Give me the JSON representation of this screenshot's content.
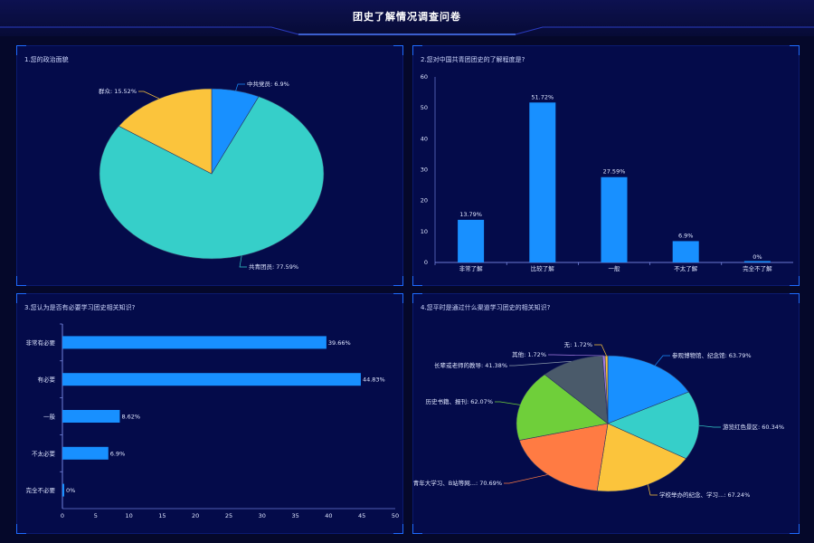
{
  "page_title": "团史了解情况调查问卷",
  "chart_data": [
    {
      "type": "pie",
      "title": "1.您的政治面貌",
      "slices": [
        {
          "label": "中共党员",
          "value": 6.9,
          "text": "中共党员: 6.9%",
          "color": "#1890ff"
        },
        {
          "label": "共青团员",
          "value": 77.59,
          "text": "共青团员: 77.59%",
          "color": "#36cfc9"
        },
        {
          "label": "群众",
          "value": 15.52,
          "text": "群众: 15.52%",
          "color": "#fbc43c"
        }
      ]
    },
    {
      "type": "bar",
      "title": "2.您对中国共青团团史的了解程度是?",
      "categories": [
        "非常了解",
        "比较了解",
        "一般",
        "不太了解",
        "完全不了解"
      ],
      "values": [
        13.79,
        51.72,
        27.59,
        6.9,
        0
      ],
      "labels": [
        "13.79%",
        "51.72%",
        "27.59%",
        "6.9%",
        "0%"
      ],
      "ylim": [
        0,
        60
      ],
      "yticks": [
        "0",
        "10",
        "20",
        "30",
        "40",
        "50",
        "60"
      ],
      "color": "#1890ff"
    },
    {
      "type": "bar",
      "orientation": "horizontal",
      "title": "3.您认为是否有必要学习团史相关知识?",
      "categories": [
        "非常有必要",
        "有必要",
        "一般",
        "不太必要",
        "完全不必要"
      ],
      "values": [
        39.66,
        44.83,
        8.62,
        6.9,
        0
      ],
      "labels": [
        "39.66%",
        "44.83%",
        "8.62%",
        "6.9%",
        "0%"
      ],
      "xlim": [
        0,
        50
      ],
      "xticks": [
        "0",
        "5",
        "10",
        "15",
        "20",
        "25",
        "30",
        "35",
        "40",
        "45",
        "50"
      ],
      "color": "#1890ff"
    },
    {
      "type": "pie",
      "title": "4.您平时是通过什么渠道学习团史的相关知识?",
      "slices": [
        {
          "label": "参观博物馆、纪念馆",
          "value": 63.79,
          "text": "参观博物馆、纪念馆: 63.79%",
          "color": "#1890ff"
        },
        {
          "label": "游览红色景区",
          "value": 60.34,
          "text": "游览红色景区: 60.34%",
          "color": "#36cfc9"
        },
        {
          "label": "学校举办的纪念、学习...",
          "value": 67.24,
          "text": "学校举办的纪念、学习...: 67.24%",
          "color": "#fbc43c"
        },
        {
          "label": "青年大学习、B站等网...",
          "value": 70.69,
          "text": "青年大学习、B站等网...: 70.69%",
          "color": "#ff7b43"
        },
        {
          "label": "历史书籍、报刊",
          "value": 62.07,
          "text": "历史书籍、报刊: 62.07%",
          "color": "#6fcf3a"
        },
        {
          "label": "长辈或老师的教导",
          "value": 41.38,
          "text": "长辈或老师的教导: 41.38%",
          "color": "#4a5a6a"
        },
        {
          "label": "其他",
          "value": 1.72,
          "text": "其他: 1.72%",
          "color": "#a47ae2"
        },
        {
          "label": "无",
          "value": 1.72,
          "text": "无: 1.72%",
          "color": "#fbc43c"
        }
      ]
    }
  ]
}
